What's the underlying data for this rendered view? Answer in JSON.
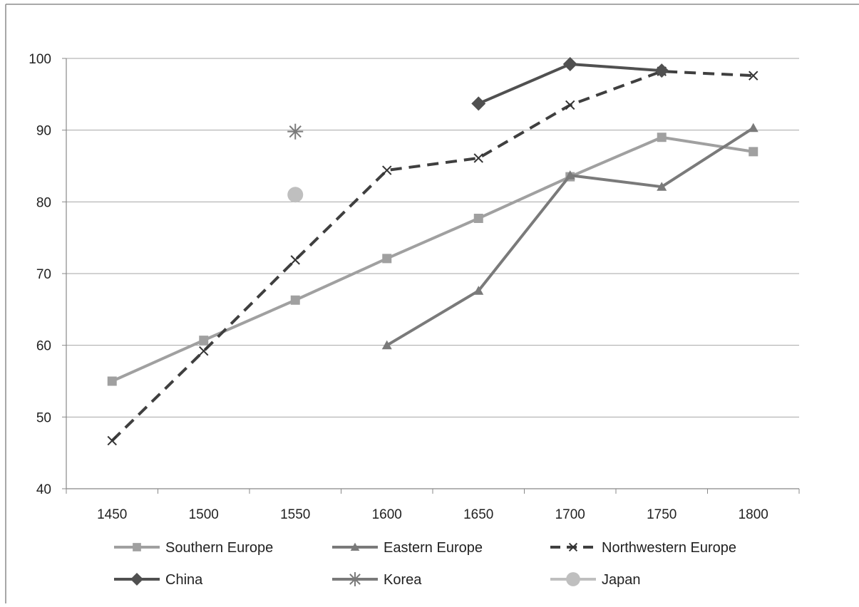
{
  "chart_data": {
    "type": "line",
    "title": "",
    "xlabel": "",
    "ylabel": "",
    "categories": [
      "1450",
      "1500",
      "1550",
      "1600",
      "1650",
      "1700",
      "1750",
      "1800"
    ],
    "ylim": [
      40,
      100
    ],
    "yticks": [
      "40",
      "50",
      "60",
      "70",
      "80",
      "90",
      "100"
    ],
    "grid": "horizontal",
    "legend_position": "bottom",
    "series": [
      {
        "name": "Southern Europe",
        "marker": "square",
        "color": "#a0a0a0",
        "dash": "solid",
        "values": [
          55.0,
          60.7,
          66.3,
          72.1,
          77.7,
          83.5,
          89.0,
          87.0
        ]
      },
      {
        "name": "Eastern Europe",
        "marker": "triangle",
        "color": "#7a7a7a",
        "dash": "solid",
        "values": [
          null,
          null,
          null,
          60.0,
          67.6,
          83.7,
          82.1,
          90.3
        ]
      },
      {
        "name": "Northwestern Europe",
        "marker": "x",
        "color": "#3f3f3f",
        "dash": "dashed",
        "values": [
          46.7,
          59.2,
          71.9,
          84.4,
          86.1,
          93.5,
          98.2,
          97.6
        ]
      },
      {
        "name": "China",
        "marker": "diamond",
        "color": "#505050",
        "dash": "solid",
        "values": [
          null,
          null,
          null,
          null,
          93.7,
          99.2,
          98.3,
          null
        ]
      },
      {
        "name": "Korea",
        "marker": "asterisk",
        "color": "#7a7a7a",
        "dash": "solid",
        "values": [
          null,
          null,
          89.8,
          null,
          null,
          null,
          null,
          null
        ]
      },
      {
        "name": "Japan",
        "marker": "circle",
        "color": "#bfbfbf",
        "dash": "solid",
        "values": [
          null,
          null,
          81.0,
          null,
          null,
          null,
          null,
          null
        ]
      }
    ]
  }
}
